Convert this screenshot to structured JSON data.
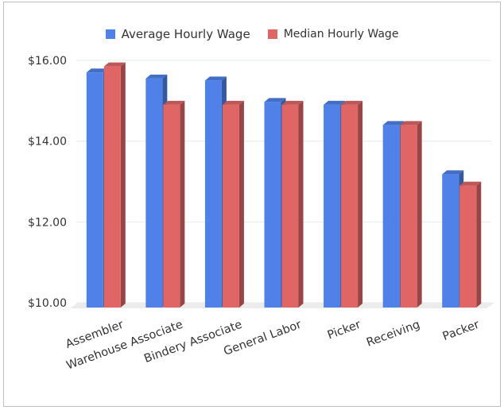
{
  "chart_data": {
    "type": "bar",
    "categories": [
      "Assembler",
      "Warehouse Associate",
      "Bindery Associate",
      "General Labor",
      "Picker",
      "Receiving",
      "Packer"
    ],
    "series": [
      {
        "name": "Average Hourly Wage",
        "color": "#4f81e8",
        "values": [
          15.7,
          15.55,
          15.5,
          14.97,
          14.9,
          14.4,
          13.18
        ]
      },
      {
        "name": "Median Hourly Wage",
        "color": "#e06666",
        "values": [
          15.85,
          14.9,
          14.9,
          14.9,
          14.9,
          14.4,
          12.9
        ]
      }
    ],
    "y_ticks": [
      "$10.00",
      "$12.00",
      "$14.00",
      "$16.00"
    ],
    "ylim": [
      10,
      16
    ],
    "legend_position": "top-center",
    "grid": true
  }
}
